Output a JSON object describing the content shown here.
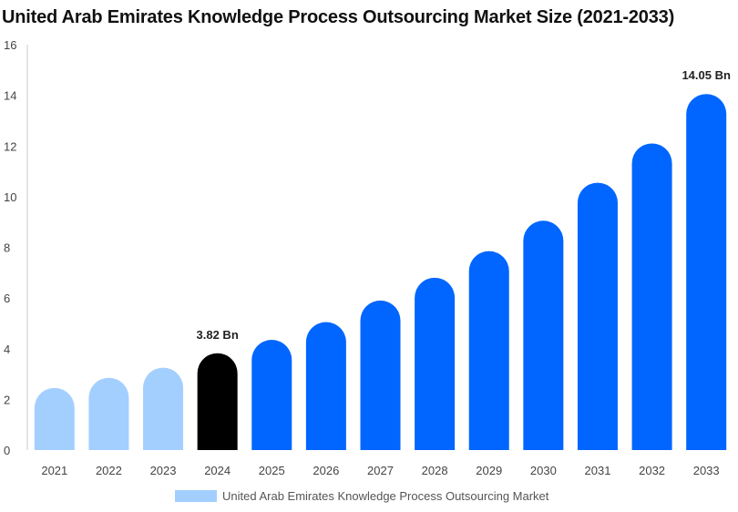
{
  "chart_data": {
    "type": "bar",
    "title": "United Arab Emirates Knowledge Process Outsourcing Market Size (2021-2033)",
    "categories": [
      "2021",
      "2022",
      "2023",
      "2024",
      "2025",
      "2026",
      "2027",
      "2028",
      "2029",
      "2030",
      "2031",
      "2032",
      "2033"
    ],
    "series": [
      {
        "name": "United Arab Emirates Knowledge Process Outsourcing Market",
        "values": [
          2.45,
          2.85,
          3.25,
          3.82,
          4.35,
          5.05,
          5.9,
          6.8,
          7.85,
          9.05,
          10.55,
          12.1,
          14.05
        ]
      }
    ],
    "data_labels": [
      {
        "index": 3,
        "text": "3.82 Bn"
      },
      {
        "index": 12,
        "text": "14.05 Bn"
      }
    ],
    "ylim": [
      0,
      16
    ],
    "yticks": [
      0,
      2,
      4,
      6,
      8,
      10,
      12,
      14,
      16
    ],
    "grid": false,
    "legend_position": "bottom",
    "colors": {
      "history": "#a3cfff",
      "current": "#000000",
      "forecast": "#0066ff"
    }
  }
}
